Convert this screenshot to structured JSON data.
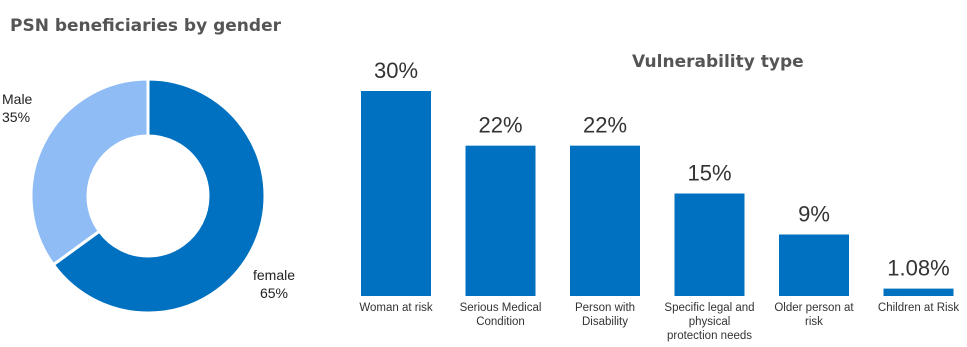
{
  "chart_data": [
    {
      "type": "pie",
      "title": "PSN beneficiaries by gender",
      "categories": [
        "Male",
        "female"
      ],
      "values": [
        35,
        65
      ],
      "value_labels": [
        "35%",
        "65%"
      ],
      "colors": [
        "#8fbcf5",
        "#0070c0"
      ]
    },
    {
      "type": "bar",
      "title": "Vulnerability type",
      "categories": [
        [
          "Woman at risk"
        ],
        [
          "Serious Medical",
          "Condition"
        ],
        [
          "Person with",
          "Disability"
        ],
        [
          "Specific legal and",
          "physical",
          "protection needs"
        ],
        [
          "Older person at",
          "risk"
        ],
        [
          "Children at Risk"
        ]
      ],
      "values": [
        30,
        22,
        22,
        15,
        9,
        1.08
      ],
      "value_labels": [
        "30%",
        "22%",
        "22%",
        "15%",
        "9%",
        "1.08%"
      ],
      "color": "#0070c0"
    }
  ]
}
